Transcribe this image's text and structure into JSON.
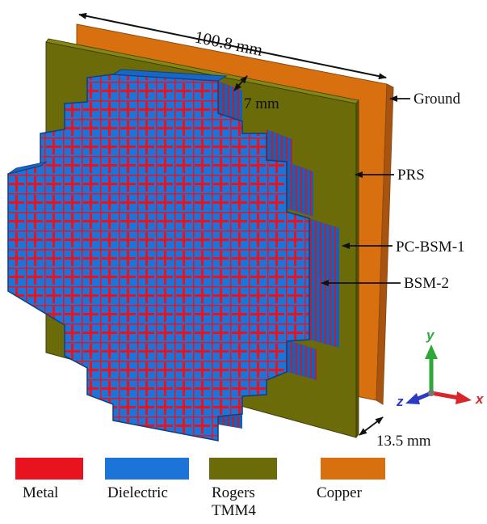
{
  "dimensions": {
    "width": "100.8 mm",
    "gap": "7 mm",
    "height": "13.5 mm"
  },
  "layers": [
    "Ground",
    "PRS",
    "PC-BSM-1",
    "BSM-2"
  ],
  "axes": {
    "x": "x",
    "y": "y",
    "z": "z"
  },
  "legend": [
    {
      "label": "Metal",
      "color": "#e8131f"
    },
    {
      "label": "Dielectric",
      "color": "#1d74d8"
    },
    {
      "label": "Rogers\nTMM4",
      "color": "#6b6b0a"
    },
    {
      "label": "Copper",
      "color": "#d9700f"
    }
  ],
  "colors": {
    "copper": "#d9700f",
    "copper_edge": "#a85410",
    "rogers": "#6b6b0a",
    "dielectric": "#1d74d8",
    "dielectric_side": "#155aa8",
    "metal": "#e8131f",
    "axis_x": "#d8262a",
    "axis_y": "#2fa83a",
    "axis_z": "#2b3bc4"
  }
}
